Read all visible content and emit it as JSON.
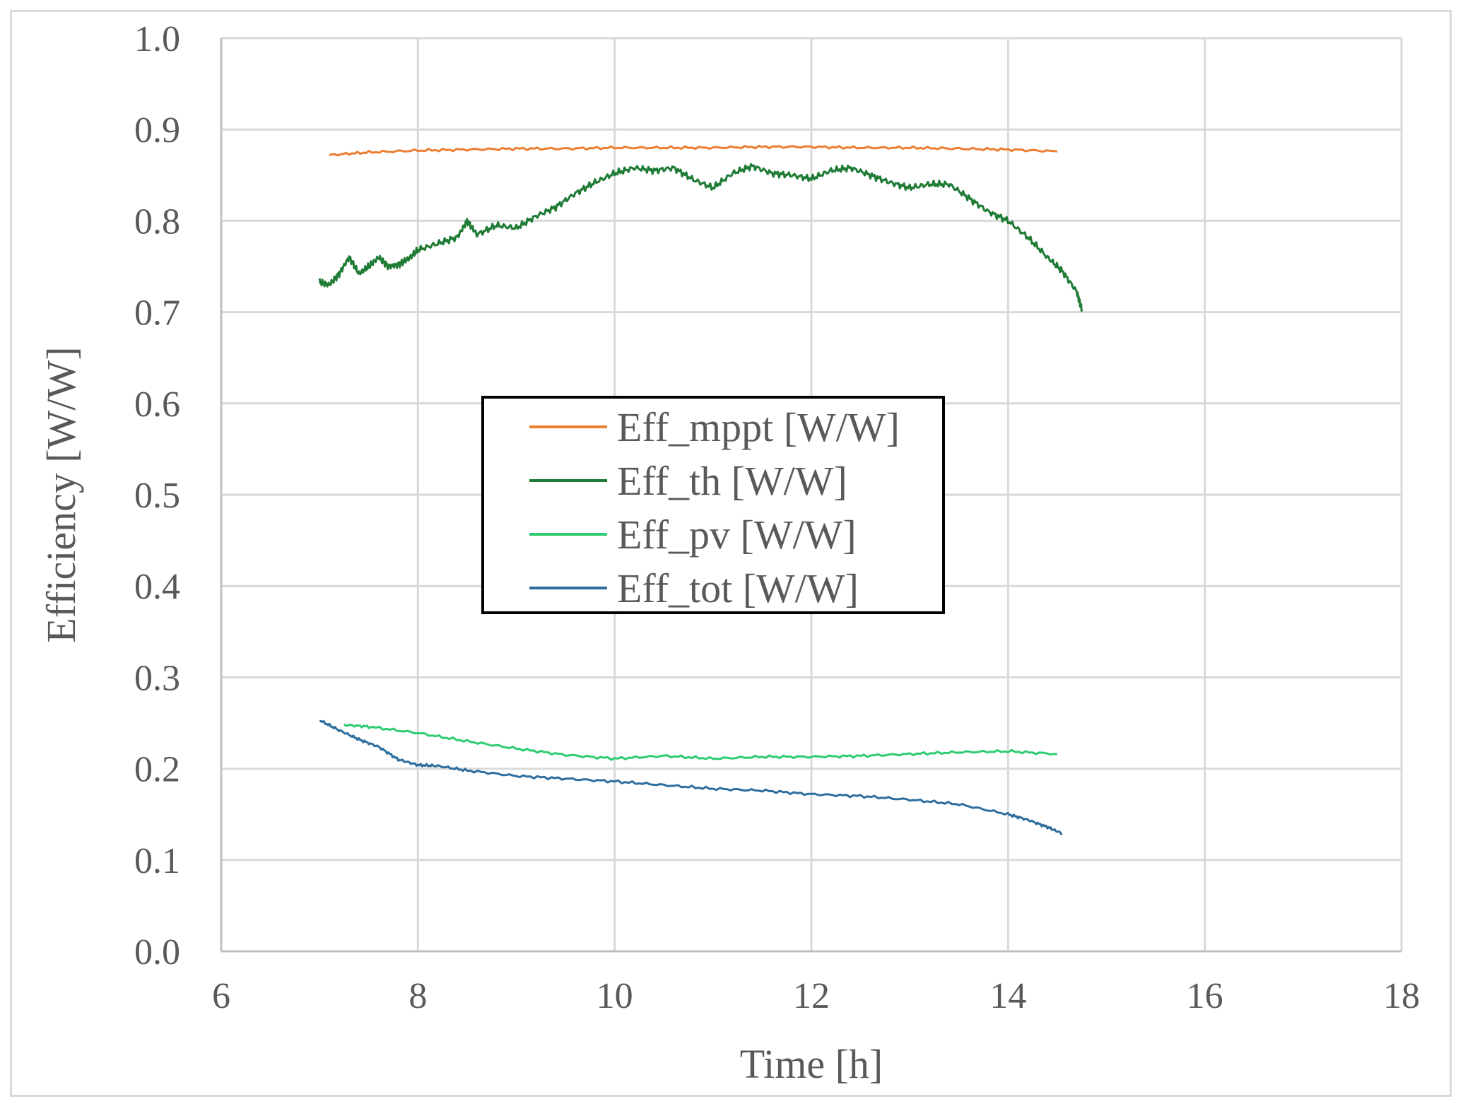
{
  "chart_data": {
    "type": "line",
    "title": "",
    "xlabel": "Time [h]",
    "ylabel": "Efficiency [W/W]",
    "xlim": [
      6,
      18
    ],
    "ylim": [
      0.0,
      1.0
    ],
    "x_ticks": [
      6,
      8,
      10,
      12,
      14,
      16,
      18
    ],
    "y_ticks": [
      0.0,
      0.1,
      0.2,
      0.3,
      0.4,
      0.5,
      0.6,
      0.7,
      0.8,
      0.9,
      1.0
    ],
    "x_tick_labels": [
      "6",
      "8",
      "10",
      "12",
      "14",
      "16",
      "18"
    ],
    "y_tick_labels": [
      "0.0",
      "0.1",
      "0.2",
      "0.3",
      "0.4",
      "0.5",
      "0.6",
      "0.7",
      "0.8",
      "0.9",
      "1.0"
    ],
    "grid": true,
    "legend_position": "center",
    "series": [
      {
        "name": "Eff_mppt [W/W]",
        "color": "#ed7d31",
        "x": [
          7.1,
          7.5,
          8.0,
          8.5,
          9.0,
          9.5,
          10.0,
          10.5,
          11.0,
          11.5,
          12.0,
          12.5,
          13.0,
          13.5,
          14.0,
          14.5
        ],
        "y": [
          0.872,
          0.875,
          0.877,
          0.878,
          0.879,
          0.879,
          0.88,
          0.88,
          0.88,
          0.881,
          0.881,
          0.88,
          0.88,
          0.879,
          0.878,
          0.876
        ]
      },
      {
        "name": "Eff_th [W/W]",
        "color": "#1e7b34",
        "x": [
          7.0,
          7.1,
          7.2,
          7.3,
          7.4,
          7.5,
          7.6,
          7.7,
          7.8,
          7.9,
          8.0,
          8.2,
          8.4,
          8.5,
          8.6,
          8.8,
          9.0,
          9.2,
          9.4,
          9.6,
          9.8,
          10.0,
          10.2,
          10.4,
          10.6,
          10.8,
          11.0,
          11.2,
          11.4,
          11.6,
          11.8,
          12.0,
          12.2,
          12.4,
          12.6,
          12.8,
          13.0,
          13.2,
          13.4,
          13.6,
          13.8,
          14.0,
          14.2,
          14.4,
          14.55,
          14.7,
          14.75
        ],
        "y": [
          0.733,
          0.73,
          0.742,
          0.76,
          0.742,
          0.75,
          0.76,
          0.75,
          0.752,
          0.758,
          0.768,
          0.775,
          0.782,
          0.8,
          0.785,
          0.795,
          0.792,
          0.805,
          0.815,
          0.83,
          0.842,
          0.852,
          0.858,
          0.855,
          0.858,
          0.845,
          0.836,
          0.852,
          0.86,
          0.852,
          0.85,
          0.846,
          0.855,
          0.858,
          0.85,
          0.842,
          0.836,
          0.84,
          0.84,
          0.825,
          0.81,
          0.8,
          0.782,
          0.76,
          0.745,
          0.722,
          0.703
        ]
      },
      {
        "name": "Eff_pv [W/W]",
        "color": "#2ecc71",
        "x": [
          7.25,
          7.5,
          8.0,
          8.5,
          9.0,
          9.5,
          10.0,
          10.5,
          11.0,
          11.5,
          12.0,
          12.5,
          13.0,
          13.5,
          14.0,
          14.5
        ],
        "y": [
          0.248,
          0.246,
          0.239,
          0.23,
          0.222,
          0.215,
          0.211,
          0.214,
          0.211,
          0.213,
          0.213,
          0.214,
          0.216,
          0.218,
          0.219,
          0.216
        ]
      },
      {
        "name": "Eff_tot [W/W]",
        "color": "#2e6e9e",
        "x": [
          7.0,
          7.2,
          7.4,
          7.6,
          7.8,
          8.0,
          8.2,
          8.5,
          9.0,
          9.5,
          10.0,
          10.5,
          11.0,
          11.5,
          12.0,
          12.5,
          13.0,
          13.5,
          14.0,
          14.2,
          14.4,
          14.55
        ],
        "y": [
          0.253,
          0.242,
          0.232,
          0.224,
          0.21,
          0.204,
          0.203,
          0.198,
          0.192,
          0.189,
          0.186,
          0.182,
          0.178,
          0.176,
          0.172,
          0.17,
          0.166,
          0.161,
          0.15,
          0.144,
          0.136,
          0.129
        ]
      }
    ]
  }
}
